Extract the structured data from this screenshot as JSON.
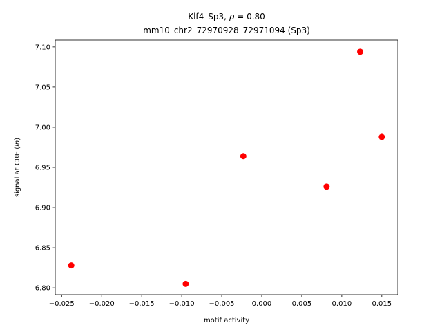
{
  "chart_data": {
    "type": "scatter",
    "title": "Klf4_Sp3, ρ = 0.80",
    "subtitle": "mm10_chr2_72970928_72971094 (Sp3)",
    "xlabel": "motif activity",
    "ylabel": "signal at CRE (ln)",
    "xlim": [
      -0.0258,
      0.017
    ],
    "ylim": [
      6.7915,
      7.1085
    ],
    "x_ticks": [
      -0.025,
      -0.02,
      -0.015,
      -0.01,
      -0.005,
      0.0,
      0.005,
      0.01,
      0.015
    ],
    "x_tick_labels": [
      "−0.025",
      "−0.020",
      "−0.015",
      "−0.010",
      "−0.005",
      "0.000",
      "0.005",
      "0.010",
      "0.015"
    ],
    "y_ticks": [
      6.8,
      6.85,
      6.9,
      6.95,
      7.0,
      7.05,
      7.1
    ],
    "y_tick_labels": [
      "6.80",
      "6.85",
      "6.90",
      "6.95",
      "7.00",
      "7.05",
      "7.10"
    ],
    "grid": false,
    "marker_color": "#ff0000",
    "points": [
      {
        "x": -0.0238,
        "y": 6.828
      },
      {
        "x": -0.0095,
        "y": 6.805
      },
      {
        "x": -0.0023,
        "y": 6.964
      },
      {
        "x": 0.0081,
        "y": 6.926
      },
      {
        "x": 0.0123,
        "y": 7.094
      },
      {
        "x": 0.015,
        "y": 6.988
      }
    ]
  }
}
